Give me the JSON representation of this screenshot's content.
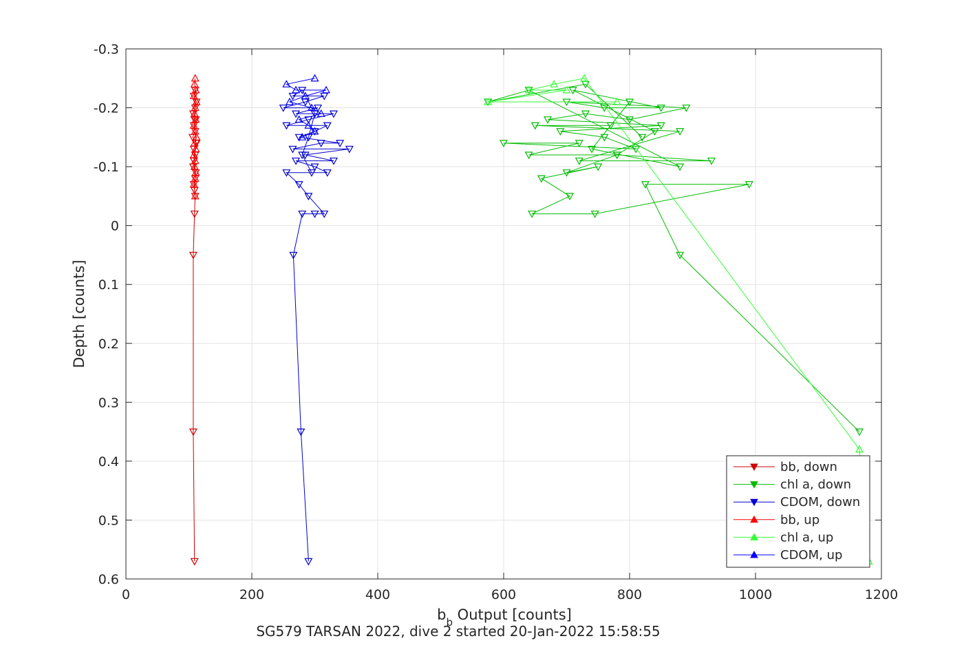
{
  "chart_data": {
    "type": "scatter",
    "xlabel_main": "b",
    "xlabel_sub": "b",
    "xlabel_rest": " Output [counts]",
    "ylabel": "Depth [counts]",
    "caption": "SG579 TARSAN 2022, dive 2 started 20-Jan-2022 15:58:55",
    "xlim": [
      0,
      1200
    ],
    "ylim": [
      -0.3,
      0.6
    ],
    "y_reversed": true,
    "grid": true,
    "legend_position": "bottom-right",
    "x_ticks": [
      "0",
      "200",
      "400",
      "600",
      "800",
      "1000",
      "1200"
    ],
    "x_tick_values": [
      0,
      200,
      400,
      600,
      800,
      1000,
      1200
    ],
    "y_ticks": [
      "-0.3",
      "-0.2",
      "-0.1",
      "0",
      "0.1",
      "0.2",
      "0.3",
      "0.4",
      "0.5",
      "0.6"
    ],
    "y_tick_values": [
      -0.3,
      -0.2,
      -0.1,
      0,
      0.1,
      0.2,
      0.3,
      0.4,
      0.5,
      0.6
    ],
    "series": [
      {
        "name": "bb, down",
        "color": "#cc0000",
        "marker": "triangle-down",
        "points": [
          [
            109,
            0.57
          ],
          [
            107,
            0.35
          ],
          [
            107,
            0.05
          ],
          [
            109,
            -0.02
          ],
          [
            110,
            -0.05
          ],
          [
            108,
            -0.07
          ],
          [
            111,
            -0.09
          ],
          [
            107,
            -0.1
          ],
          [
            110,
            -0.12
          ],
          [
            108,
            -0.13
          ],
          [
            112,
            -0.14
          ],
          [
            106,
            -0.15
          ],
          [
            110,
            -0.16
          ],
          [
            108,
            -0.17
          ],
          [
            111,
            -0.18
          ],
          [
            107,
            -0.19
          ],
          [
            110,
            -0.2
          ],
          [
            112,
            -0.21
          ],
          [
            108,
            -0.22
          ],
          [
            110,
            -0.23
          ],
          [
            109,
            -0.18
          ],
          [
            111,
            -0.14
          ],
          [
            108,
            -0.11
          ],
          [
            110,
            -0.08
          ],
          [
            109,
            -0.06
          ]
        ]
      },
      {
        "name": "chl a, down",
        "color": "#00bb00",
        "marker": "triangle-down",
        "points": [
          [
            1165,
            0.35
          ],
          [
            880,
            0.05
          ],
          [
            825,
            -0.07
          ],
          [
            990,
            -0.07
          ],
          [
            745,
            -0.02
          ],
          [
            645,
            -0.02
          ],
          [
            705,
            -0.05
          ],
          [
            660,
            -0.08
          ],
          [
            750,
            -0.1
          ],
          [
            700,
            -0.09
          ],
          [
            780,
            -0.12
          ],
          [
            640,
            -0.12
          ],
          [
            720,
            -0.14
          ],
          [
            600,
            -0.14
          ],
          [
            810,
            -0.13
          ],
          [
            760,
            -0.15
          ],
          [
            690,
            -0.16
          ],
          [
            850,
            -0.17
          ],
          [
            670,
            -0.18
          ],
          [
            730,
            -0.19
          ],
          [
            800,
            -0.18
          ],
          [
            890,
            -0.2
          ],
          [
            700,
            -0.21
          ],
          [
            760,
            -0.2
          ],
          [
            850,
            -0.2
          ],
          [
            710,
            -0.23
          ],
          [
            840,
            -0.16
          ],
          [
            780,
            -0.12
          ],
          [
            930,
            -0.11
          ],
          [
            720,
            -0.11
          ],
          [
            880,
            -0.16
          ],
          [
            650,
            -0.17
          ],
          [
            770,
            -0.17
          ],
          [
            800,
            -0.21
          ],
          [
            740,
            -0.13
          ],
          [
            880,
            -0.1
          ],
          [
            640,
            -0.23
          ],
          [
            575,
            -0.21
          ],
          [
            730,
            -0.24
          ],
          [
            820,
            -0.15
          ]
        ]
      },
      {
        "name": "CDOM, down",
        "color": "#0000cc",
        "marker": "triangle-down",
        "points": [
          [
            290,
            0.57
          ],
          [
            278,
            0.35
          ],
          [
            266,
            0.05
          ],
          [
            280,
            -0.02
          ],
          [
            300,
            -0.02
          ],
          [
            315,
            -0.02
          ],
          [
            290,
            -0.05
          ],
          [
            275,
            -0.07
          ],
          [
            255,
            -0.09
          ],
          [
            320,
            -0.09
          ],
          [
            300,
            -0.1
          ],
          [
            270,
            -0.11
          ],
          [
            330,
            -0.11
          ],
          [
            285,
            -0.12
          ],
          [
            355,
            -0.13
          ],
          [
            265,
            -0.13
          ],
          [
            310,
            -0.14
          ],
          [
            340,
            -0.14
          ],
          [
            275,
            -0.15
          ],
          [
            300,
            -0.16
          ],
          [
            320,
            -0.17
          ],
          [
            255,
            -0.17
          ],
          [
            290,
            -0.18
          ],
          [
            330,
            -0.19
          ],
          [
            270,
            -0.19
          ],
          [
            305,
            -0.2
          ],
          [
            250,
            -0.2
          ],
          [
            285,
            -0.21
          ],
          [
            315,
            -0.22
          ],
          [
            265,
            -0.22
          ],
          [
            280,
            -0.23
          ],
          [
            300,
            -0.19
          ],
          [
            290,
            -0.15
          ],
          [
            280,
            -0.12
          ],
          [
            295,
            -0.09
          ]
        ]
      },
      {
        "name": "bb, up",
        "color": "#ff0000",
        "marker": "triangle-up",
        "points": [
          [
            110,
            -0.25
          ],
          [
            109,
            -0.24
          ],
          [
            111,
            -0.23
          ],
          [
            108,
            -0.22
          ],
          [
            112,
            -0.21
          ],
          [
            110,
            -0.2
          ],
          [
            109,
            -0.19
          ],
          [
            111,
            -0.18
          ],
          [
            108,
            -0.17
          ],
          [
            110,
            -0.16
          ],
          [
            112,
            -0.15
          ],
          [
            109,
            -0.14
          ],
          [
            111,
            -0.13
          ],
          [
            108,
            -0.12
          ],
          [
            110,
            -0.11
          ],
          [
            109,
            -0.1
          ],
          [
            111,
            -0.09
          ],
          [
            110,
            -0.08
          ],
          [
            108,
            -0.07
          ],
          [
            110,
            -0.05
          ]
        ]
      },
      {
        "name": "chl a, up",
        "color": "#33ff33",
        "marker": "triangle-up",
        "points": [
          [
            1180,
            0.57
          ],
          [
            1165,
            0.38
          ],
          [
            728,
            -0.25
          ],
          [
            680,
            -0.24
          ],
          [
            640,
            -0.23
          ],
          [
            700,
            -0.23
          ],
          [
            575,
            -0.21
          ],
          [
            780,
            -0.21
          ]
        ]
      },
      {
        "name": "CDOM, up",
        "color": "#0000ff",
        "marker": "triangle-up",
        "points": [
          [
            300,
            -0.25
          ],
          [
            255,
            -0.24
          ],
          [
            270,
            -0.23
          ],
          [
            318,
            -0.23
          ],
          [
            285,
            -0.22
          ],
          [
            260,
            -0.21
          ],
          [
            295,
            -0.2
          ],
          [
            310,
            -0.19
          ],
          [
            275,
            -0.18
          ],
          [
            290,
            -0.17
          ],
          [
            300,
            -0.16
          ],
          [
            280,
            -0.15
          ]
        ]
      }
    ]
  }
}
